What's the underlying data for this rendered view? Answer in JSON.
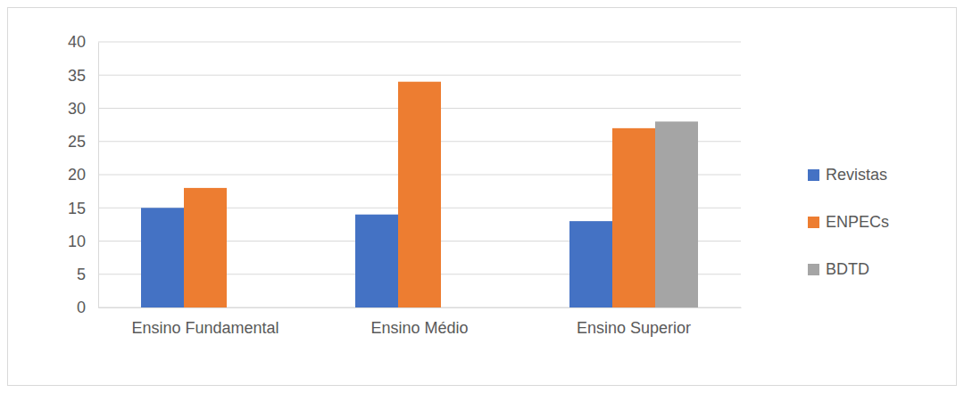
{
  "chart_data": {
    "type": "bar",
    "categories": [
      "Ensino Fundamental",
      "Ensino Médio",
      "Ensino Superior"
    ],
    "series": [
      {
        "name": "Revistas",
        "color": "#4472c4",
        "values": [
          15,
          14,
          13
        ]
      },
      {
        "name": "ENPECs",
        "color": "#ed7d31",
        "values": [
          18,
          34,
          27
        ]
      },
      {
        "name": "BDTD",
        "color": "#a5a5a5",
        "values": [
          null,
          null,
          28
        ]
      }
    ],
    "ylim": [
      0,
      40
    ],
    "yticks": [
      0,
      5,
      10,
      15,
      20,
      25,
      30,
      35,
      40
    ],
    "grid": true,
    "legend": "right"
  }
}
